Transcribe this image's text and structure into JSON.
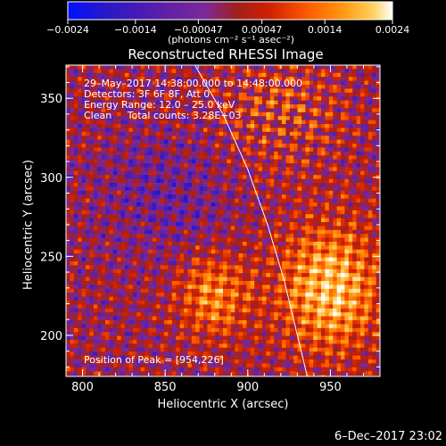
{
  "colorbar": {
    "tick_labels": [
      "−0.0024",
      "−0.0014",
      "−0.00047",
      "0.00047",
      "0.0014",
      "0.0024"
    ],
    "tick_values": [
      -0.0024,
      -0.0014,
      -0.00047,
      0.00047,
      0.0014,
      0.0024
    ],
    "unit_label": "(photons cm⁻² s⁻¹ asec⁻²)",
    "colors": [
      "#0010ff",
      "#2a18c8",
      "#5a1eaa",
      "#7a2a9a",
      "#a02020",
      "#d02000",
      "#ff5a00",
      "#ff9a10",
      "#ffd060",
      "#ffffff"
    ]
  },
  "chart_data": {
    "type": "heatmap",
    "title": "Reconstructed RHESSI Image",
    "xlabel": "Heliocentric X (arcsec)",
    "ylabel": "Heliocentric Y (arcsec)",
    "xlim": [
      790,
      980
    ],
    "ylim": [
      174,
      371
    ],
    "x_ticks": [
      800,
      850,
      900,
      950
    ],
    "y_ticks": [
      200,
      250,
      300,
      350
    ],
    "x_tick_labels": [
      "800",
      "850",
      "900",
      "950"
    ],
    "y_tick_labels": [
      "200",
      "250",
      "300",
      "350"
    ],
    "color_range": [
      -0.0024,
      0.0024
    ],
    "limb_curve": [
      [
        868,
        371
      ],
      [
        885,
        340
      ],
      [
        900,
        305
      ],
      [
        912,
        270
      ],
      [
        922,
        235
      ],
      [
        930,
        200
      ],
      [
        936,
        174
      ]
    ],
    "annotations": [
      "29–May–2017 14:38:00.000 to 14:48:00.000",
      "Detectors: 3F 6F 8F, Att 0",
      "Energy Range: 12.0 – 25.0 keV",
      "Clean     Total counts: 3.28E+03"
    ],
    "peak_label": "Position of Peak = [954,226]",
    "peak": [
      954,
      226
    ]
  },
  "footer": {
    "timestamp": "6–Dec–2017 23:02"
  }
}
